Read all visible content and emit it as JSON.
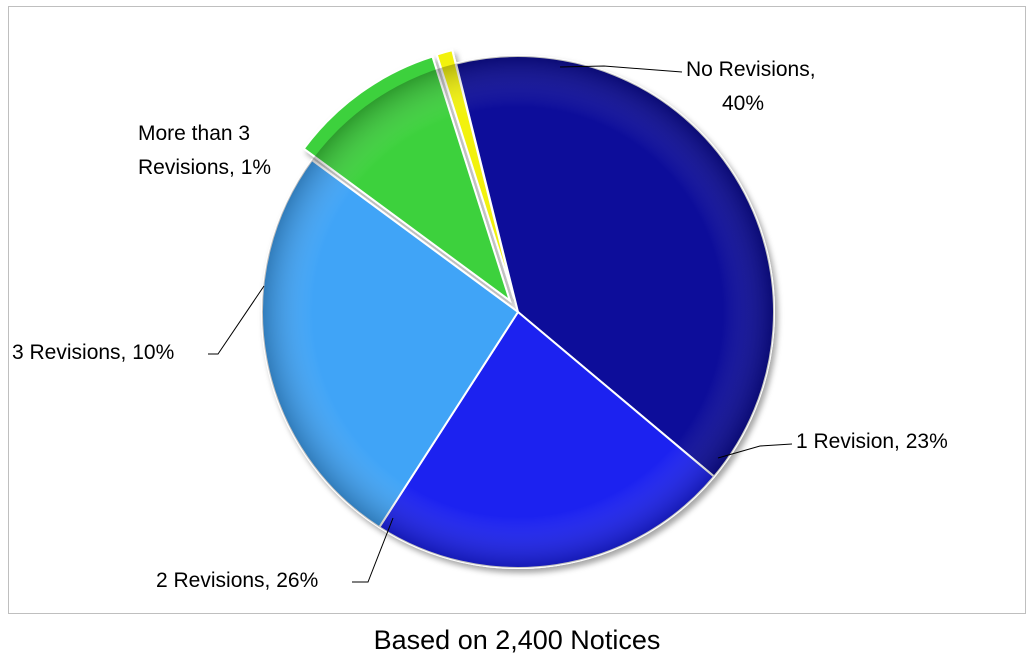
{
  "chart_data": {
    "type": "pie",
    "title": "",
    "slices": [
      {
        "label_lines": [
          "No Revisions,",
          "40%"
        ],
        "category": "No Revisions",
        "value": 40,
        "color": "#0b0f9a",
        "exploded": false
      },
      {
        "label_lines": [
          "1 Revision, 23%"
        ],
        "category": "1 Revision",
        "value": 23,
        "color": "#1a24f0",
        "exploded": false
      },
      {
        "label_lines": [
          "2 Revisions, 26%"
        ],
        "category": "2 Revisions",
        "value": 26,
        "color": "#3fa4f7",
        "exploded": false
      },
      {
        "label_lines": [
          "3 Revisions, 10%"
        ],
        "category": "3 Revisions",
        "value": 10,
        "color": "#3ed13e",
        "exploded": true
      },
      {
        "label_lines": [
          "More than 3",
          "Revisions, 1%"
        ],
        "category": "More than 3 Revisions",
        "value": 1,
        "color": "#f2f20f",
        "exploded": true
      }
    ],
    "caption": "Based on 2,400 Notices",
    "legend": "none"
  }
}
